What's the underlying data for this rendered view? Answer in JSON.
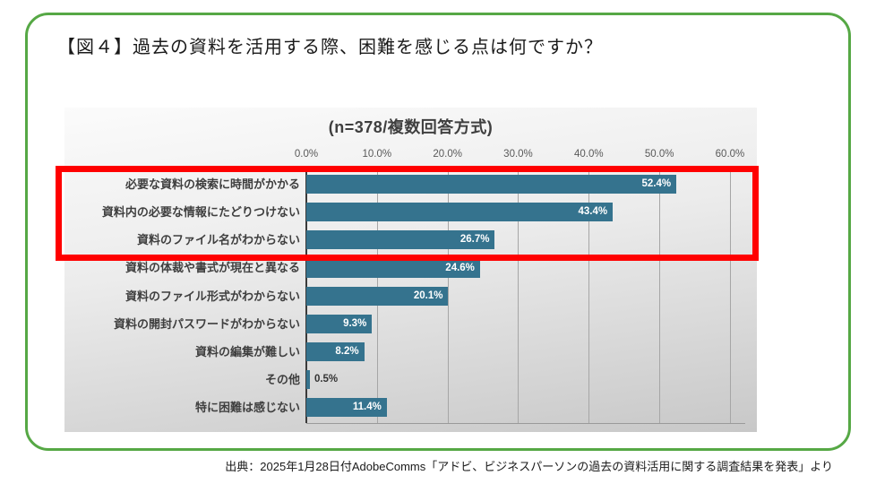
{
  "page": {
    "title": "【図４】過去の資料を活用する際、困難を感じる点は何ですか？",
    "source": "出典：2025年1月28日付AdobeComms「アドビ、ビジネスパーソンの過去の資料活用に関する調査結果を発表」より"
  },
  "colors": {
    "bar": "#35738e",
    "card_border": "#56a845",
    "highlight_border": "#ff0000",
    "value_label_inside": "#ffffff",
    "value_label_outside": "#333333"
  },
  "chart_data": {
    "type": "bar",
    "orientation": "horizontal",
    "title": "(n=378/複数回答方式)",
    "categories": [
      "必要な資料の検索に時間がかかる",
      "資料内の必要な情報にたどりつけない",
      "資料のファイル名がわからない",
      "資料の体裁や書式が現在と異なる",
      "資料のファイル形式がわからない",
      "資料の開封パスワードがわからない",
      "資料の編集が難しい",
      "その他",
      "特に困難は感じない"
    ],
    "values": [
      52.4,
      43.4,
      26.7,
      24.6,
      20.1,
      9.3,
      8.2,
      0.5,
      11.4
    ],
    "value_labels": [
      "52.4%",
      "43.4%",
      "26.7%",
      "24.6%",
      "20.1%",
      "9.3%",
      "8.2%",
      "0.5%",
      "11.4%"
    ],
    "xlim": [
      0,
      60
    ],
    "xticks": [
      "0.0%",
      "10.0%",
      "20.0%",
      "30.0%",
      "40.0%",
      "50.0%",
      "60.0%"
    ],
    "grid": true,
    "legend": "none",
    "highlighted_rows": [
      0,
      1,
      2
    ],
    "highlight_note": "top three bars outlined with red rectangle"
  }
}
